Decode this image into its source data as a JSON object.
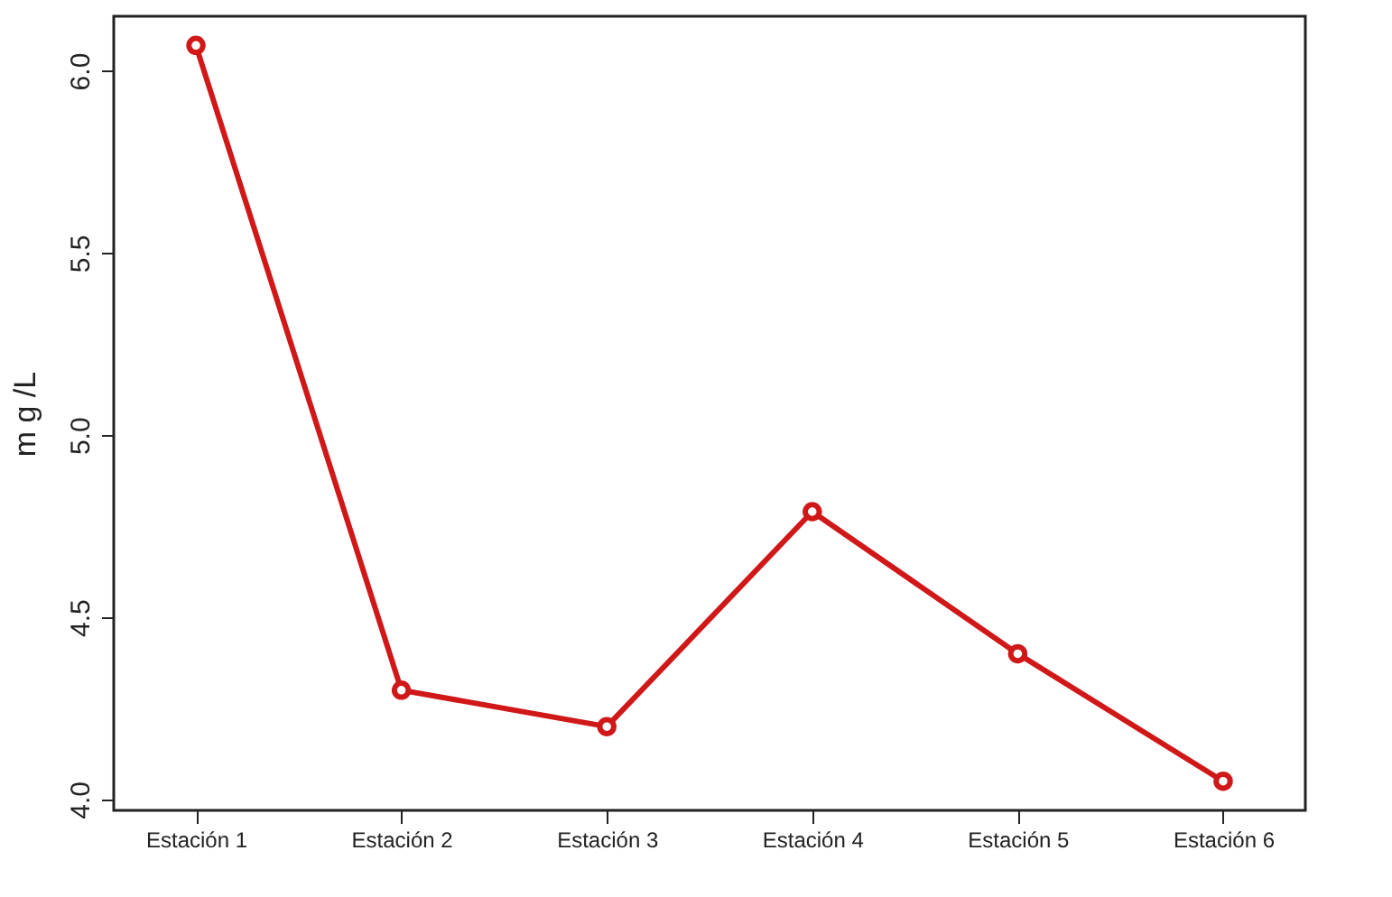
{
  "chart_data": {
    "type": "line",
    "ylabel": "m g /L",
    "categories": [
      "Estación 1",
      "Estación 2",
      "Estación 3",
      "Estación 4",
      "Estación 5",
      "Estación 6"
    ],
    "series": [
      {
        "color": "#d01818",
        "values": [
          6.07,
          4.3,
          4.2,
          4.79,
          4.4,
          4.05
        ]
      }
    ],
    "ylim": [
      3.97,
      6.15
    ],
    "yticks": [
      {
        "value": 4,
        "label": "4.0"
      },
      {
        "value": 4.5,
        "label": "4.5"
      },
      {
        "value": 5,
        "label": "5.0"
      },
      {
        "value": 5.5,
        "label": "5.5"
      },
      {
        "value": 6,
        "label": "6.0"
      }
    ],
    "grid": false,
    "marker": "circle",
    "line_style": "solid"
  }
}
